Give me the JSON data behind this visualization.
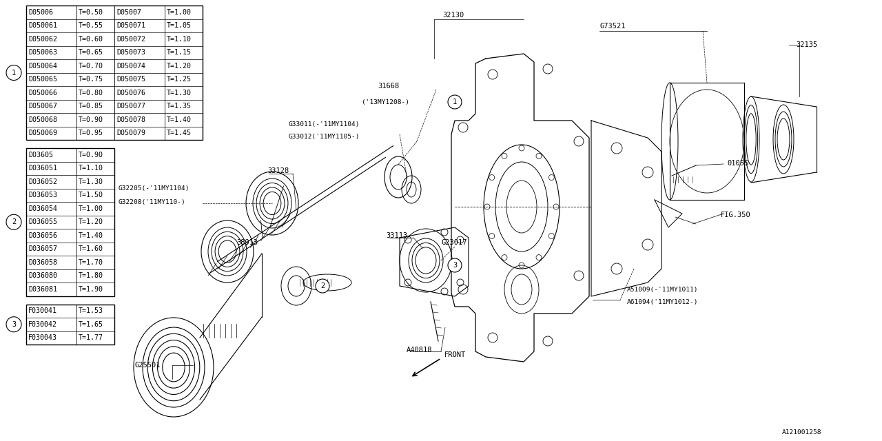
{
  "bg_color": "#ffffff",
  "line_color": "#000000",
  "fig_width": 12.8,
  "fig_height": 6.4,
  "table1_rows": [
    [
      "D05006",
      "T=0.50",
      "D05007",
      "T=1.00"
    ],
    [
      "D050061",
      "T=0.55",
      "D050071",
      "T=1.05"
    ],
    [
      "D050062",
      "T=0.60",
      "D050072",
      "T=1.10"
    ],
    [
      "D050063",
      "T=0.65",
      "D050073",
      "T=1.15"
    ],
    [
      "D050064",
      "T=0.70",
      "D050074",
      "T=1.20"
    ],
    [
      "D050065",
      "T=0.75",
      "D050075",
      "T=1.25"
    ],
    [
      "D050066",
      "T=0.80",
      "D050076",
      "T=1.30"
    ],
    [
      "D050067",
      "T=0.85",
      "D050077",
      "T=1.35"
    ],
    [
      "D050068",
      "T=0.90",
      "D050078",
      "T=1.40"
    ],
    [
      "D050069",
      "T=0.95",
      "D050079",
      "T=1.45"
    ]
  ],
  "table2_rows": [
    [
      "D03605",
      "T=0.90"
    ],
    [
      "D036051",
      "T=1.10"
    ],
    [
      "D036052",
      "T=1.30"
    ],
    [
      "D036053",
      "T=1.50"
    ],
    [
      "D036054",
      "T=1.00"
    ],
    [
      "D036055",
      "T=1.20"
    ],
    [
      "D036056",
      "T=1.40"
    ],
    [
      "D036057",
      "T=1.60"
    ],
    [
      "D036058",
      "T=1.70"
    ],
    [
      "D036080",
      "T=1.80"
    ],
    [
      "D036081",
      "T=1.90"
    ]
  ],
  "table3_rows": [
    [
      "F030041",
      "T=1.53"
    ],
    [
      "F030042",
      "T=1.65"
    ],
    [
      "F030043",
      "T=1.77"
    ]
  ],
  "font_size_label": 7.5,
  "font_size_table": 7.2,
  "font_size_small": 6.8
}
